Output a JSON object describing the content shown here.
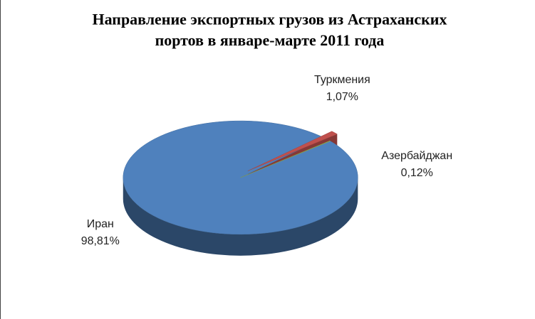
{
  "chart_data": {
    "type": "pie3d",
    "title": [
      "Направление экспортных грузов из Астраханских",
      "портов в январе-марте 2011 года"
    ],
    "categories": [
      "Иран",
      "Туркмения",
      "Азербайджан"
    ],
    "values": [
      98.81,
      1.07,
      0.12
    ],
    "value_labels": [
      "98,81%",
      "1,07%",
      "0,12%"
    ],
    "colors": [
      "#4f81bd",
      "#c0504d",
      "#9bbb59"
    ],
    "exploded": [
      false,
      true,
      false
    ]
  }
}
